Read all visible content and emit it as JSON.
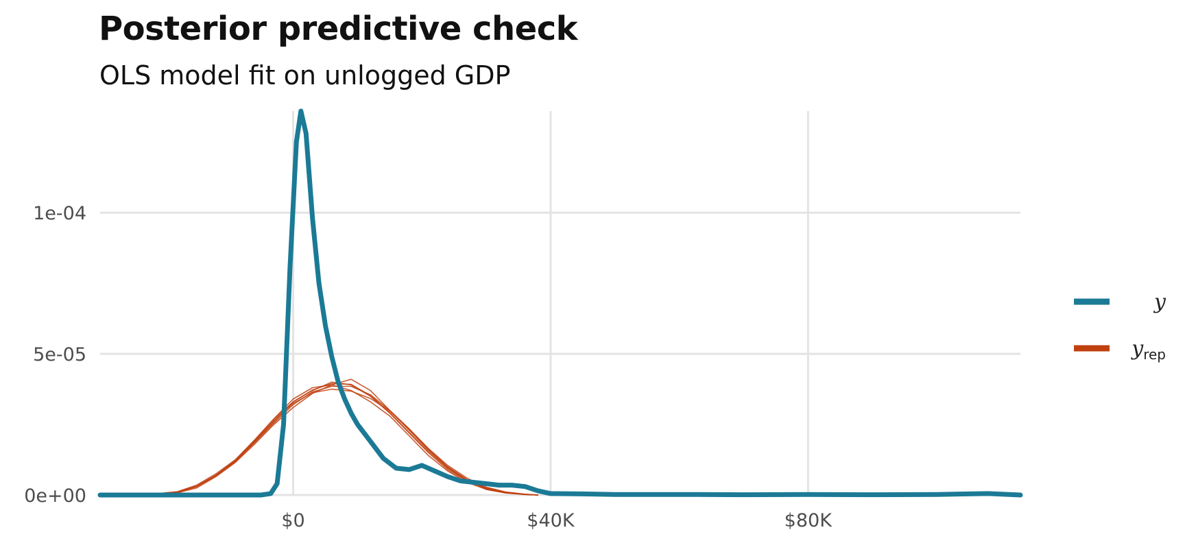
{
  "chart_data": {
    "type": "line",
    "title": "Posterior predictive check",
    "subtitle": "OLS model fit on unlogged GDP",
    "xlabel": "",
    "ylabel": "",
    "xlim": [
      -30000,
      113000
    ],
    "ylim": [
      0,
      0.000136
    ],
    "x_ticks": [
      {
        "value": 0,
        "label": "$0"
      },
      {
        "value": 40000,
        "label": "$40K"
      },
      {
        "value": 80000,
        "label": "$80K"
      }
    ],
    "y_ticks": [
      {
        "value": 0,
        "label": "0e+00"
      },
      {
        "value": 5e-05,
        "label": "5e-05"
      },
      {
        "value": 0.0001,
        "label": "1e-04"
      }
    ],
    "grid": true,
    "legend": {
      "position": "right",
      "entries": [
        {
          "label": "y",
          "subscript": "",
          "color": "#1b7a96"
        },
        {
          "label": "y",
          "subscript": "rep",
          "color": "#c0400f"
        }
      ]
    },
    "series": [
      {
        "name": "y",
        "color": "#1b7a96",
        "x": [
          -30000,
          -5000,
          -3500,
          -2500,
          -1500,
          -500,
          500,
          1200,
          2000,
          3000,
          4000,
          5000,
          6000,
          7000,
          8000,
          9000,
          10000,
          12000,
          14000,
          16000,
          18000,
          20000,
          22000,
          24000,
          26000,
          28000,
          30000,
          32000,
          34000,
          36000,
          38000,
          40000,
          45000,
          50000,
          60000,
          70000,
          80000,
          90000,
          100000,
          108000,
          113000
        ],
        "y": [
          0,
          0,
          5e-07,
          4e-06,
          2.5e-05,
          8e-05,
          0.000125,
          0.000136,
          0.000128,
          9.8e-05,
          7.5e-05,
          6e-05,
          4.9e-05,
          4e-05,
          3.4e-05,
          2.9e-05,
          2.5e-05,
          1.9e-05,
          1.3e-05,
          9.5e-06,
          9e-06,
          1.05e-05,
          8.5e-06,
          6.5e-06,
          5e-06,
          4.5e-06,
          4e-06,
          3.5e-06,
          3.5e-06,
          3e-06,
          1.5e-06,
          5e-07,
          4e-07,
          2e-07,
          2e-07,
          1e-07,
          2e-07,
          1e-07,
          2e-07,
          5e-07,
          0
        ]
      },
      {
        "name": "y_rep 1",
        "color": "#c0400f",
        "x": [
          -30000,
          -22000,
          -18000,
          -15000,
          -12000,
          -9000,
          -6000,
          -3000,
          0,
          3000,
          6000,
          9000,
          12000,
          15000,
          18000,
          21000,
          24000,
          27000,
          30000,
          33000,
          36000,
          38000
        ],
        "y": [
          0,
          2e-07,
          1e-06,
          3e-06,
          7e-06,
          1.2e-05,
          1.9e-05,
          2.6e-05,
          3.3e-05,
          3.7e-05,
          4e-05,
          3.9e-05,
          3.5e-05,
          2.9e-05,
          2.2e-05,
          1.5e-05,
          9e-06,
          5e-06,
          2e-06,
          8e-07,
          2e-07,
          0
        ]
      },
      {
        "name": "y_rep 2",
        "color": "#c0400f",
        "x": [
          -30000,
          -22000,
          -18000,
          -15000,
          -12000,
          -9000,
          -6000,
          -3000,
          0,
          3000,
          6000,
          9000,
          12000,
          15000,
          18000,
          21000,
          24000,
          27000,
          30000,
          33000,
          36000,
          38000
        ],
        "y": [
          0,
          1e-07,
          8e-07,
          2.5e-06,
          6.5e-06,
          1.15e-05,
          1.8e-05,
          2.5e-05,
          3.1e-05,
          3.6e-05,
          3.9e-05,
          4.1e-05,
          3.7e-05,
          3e-05,
          2.3e-05,
          1.6e-05,
          1e-05,
          5.5e-06,
          2.5e-06,
          1e-06,
          3e-07,
          0
        ]
      },
      {
        "name": "y_rep 3",
        "color": "#c0400f",
        "x": [
          -30000,
          -22000,
          -18000,
          -15000,
          -12000,
          -9000,
          -6000,
          -3000,
          0,
          3000,
          6000,
          9000,
          12000,
          15000,
          18000,
          21000,
          24000,
          27000,
          30000,
          33000,
          36000,
          38000
        ],
        "y": [
          0,
          3e-07,
          1.2e-06,
          3.5e-06,
          7.5e-06,
          1.25e-05,
          1.95e-05,
          2.7e-05,
          3.4e-05,
          3.8e-05,
          3.9e-05,
          3.7e-05,
          3.3e-05,
          2.8e-05,
          2.1e-05,
          1.4e-05,
          8.5e-06,
          4.5e-06,
          2e-06,
          7e-07,
          2e-07,
          0
        ]
      },
      {
        "name": "y_rep 4",
        "color": "#c0400f",
        "x": [
          -30000,
          -22000,
          -18000,
          -15000,
          -12000,
          -9000,
          -6000,
          -3000,
          0,
          3000,
          6000,
          9000,
          12000,
          15000,
          18000,
          21000,
          24000,
          27000,
          30000,
          33000,
          36000,
          38000
        ],
        "y": [
          0,
          2e-07,
          9e-07,
          3e-06,
          7e-06,
          1.2e-05,
          1.85e-05,
          2.55e-05,
          3.2e-05,
          3.65e-05,
          3.85e-05,
          3.85e-05,
          3.55e-05,
          3e-05,
          2.35e-05,
          1.65e-05,
          1.05e-05,
          6e-06,
          2.8e-06,
          1.1e-06,
          3e-07,
          0
        ]
      },
      {
        "name": "y_rep 5",
        "color": "#c0400f",
        "x": [
          -30000,
          -22000,
          -18000,
          -15000,
          -12000,
          -9000,
          -6000,
          -3000,
          0,
          3000,
          6000,
          9000,
          12000,
          15000,
          18000,
          21000,
          24000,
          27000,
          30000,
          33000,
          36000,
          38000
        ],
        "y": [
          0,
          2e-07,
          1e-06,
          3e-06,
          6.8e-06,
          1.18e-05,
          1.88e-05,
          2.62e-05,
          3.25e-05,
          3.62e-05,
          3.75e-05,
          3.68e-05,
          3.42e-05,
          2.98e-05,
          2.32e-05,
          1.62e-05,
          9.8e-06,
          5.2e-06,
          2.2e-06,
          8e-07,
          2e-07,
          0
        ]
      },
      {
        "name": "y_rep 6",
        "color": "#c0400f",
        "x": [
          -30000,
          -22000,
          -18000,
          -15000,
          -12000,
          -9000,
          -6000,
          -3000,
          0,
          3000,
          6000,
          9000,
          12000,
          15000,
          18000,
          21000,
          24000,
          27000,
          30000,
          33000,
          36000,
          38000
        ],
        "y": [
          0,
          2e-07,
          1.1e-06,
          3.2e-06,
          7e-06,
          1.22e-05,
          1.92e-05,
          2.68e-05,
          3.3e-05,
          3.72e-05,
          3.95e-05,
          3.92e-05,
          3.52e-05,
          2.92e-05,
          2.22e-05,
          1.55e-05,
          9.5e-06,
          5.2e-06,
          2.4e-06,
          9e-07,
          2e-07,
          0
        ]
      }
    ]
  }
}
